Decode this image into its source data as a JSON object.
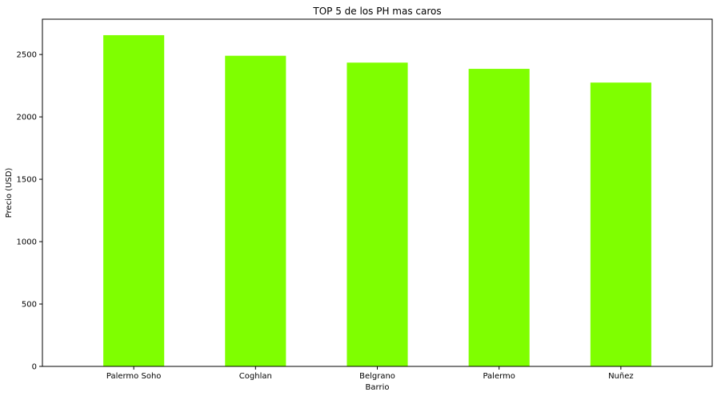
{
  "chart_data": {
    "type": "bar",
    "title": "TOP 5 de los PH mas caros",
    "xlabel": "Barrio",
    "ylabel": "Precio (USD)",
    "categories": [
      "Palermo Soho",
      "Coghlan",
      "Belgrano",
      "Palermo",
      "Nuñez"
    ],
    "values": [
      2655,
      2490,
      2435,
      2385,
      2275
    ],
    "ylim": [
      0,
      2783
    ],
    "yticks": [
      0,
      500,
      1000,
      1500,
      2000,
      2500
    ],
    "grid": false,
    "legend": "none",
    "bar_color": "#7fff00"
  }
}
